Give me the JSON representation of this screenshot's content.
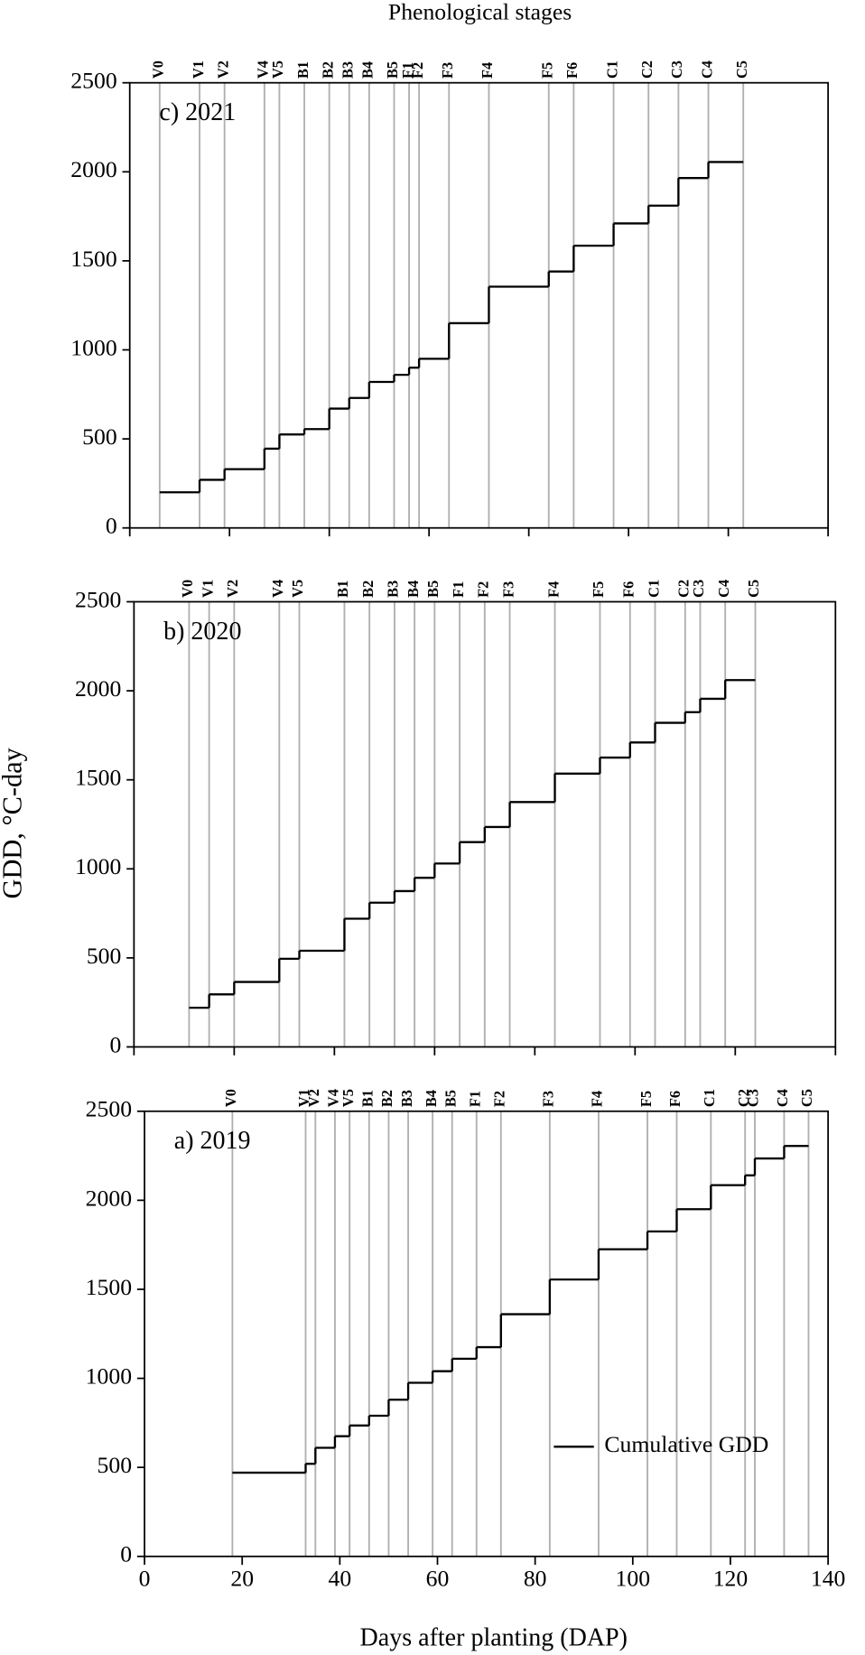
{
  "title": "Phenological stages",
  "xlabel": "Days after planting (DAP)",
  "ylabel": "GDD, °C-day",
  "chart_data": [
    {
      "type": "line",
      "panel_label": "c) 2021",
      "color": "#000000",
      "stage_color": "#b0b0b0",
      "stages": [
        "V0",
        "V1",
        "V2",
        "V4",
        "V5",
        "B1",
        "B2",
        "B3",
        "B4",
        "B5",
        "F1",
        "F2",
        "F3",
        "F4",
        "F5",
        "F6",
        "C1",
        "C2",
        "C3",
        "C4",
        "C5"
      ],
      "x": [
        6,
        14,
        19,
        27,
        30,
        35,
        40,
        44,
        48,
        53,
        56,
        58,
        64,
        72,
        84,
        89,
        97,
        104,
        110,
        116,
        123
      ],
      "values": [
        200,
        270,
        330,
        445,
        525,
        555,
        670,
        730,
        820,
        860,
        900,
        950,
        1150,
        1355,
        1440,
        1585,
        1710,
        1810,
        1965,
        2055,
        2055
      ],
      "xlim": [
        0,
        140
      ],
      "ylim": [
        0,
        2500
      ],
      "xticks": [
        0,
        20,
        40,
        60,
        80,
        100,
        120,
        140
      ],
      "xtick_labels": false,
      "yticks": [
        0,
        500,
        1000,
        1500,
        2000,
        2500
      ]
    },
    {
      "type": "line",
      "panel_label": "b) 2020",
      "color": "#000000",
      "stage_color": "#b0b0b0",
      "stages": [
        "V0",
        "V1",
        "V2",
        "V4",
        "V5",
        "B1",
        "B2",
        "B3",
        "B4",
        "B5",
        "F1",
        "F2",
        "F3",
        "F4",
        "F5",
        "F6",
        "C1",
        "C2",
        "C3",
        "C4",
        "C5"
      ],
      "x": [
        11,
        15,
        20,
        29,
        33,
        42,
        47,
        52,
        56,
        60,
        65,
        70,
        75,
        84,
        93,
        99,
        104,
        110,
        113,
        118,
        124
      ],
      "values": [
        220,
        295,
        365,
        495,
        540,
        720,
        810,
        875,
        950,
        1030,
        1150,
        1235,
        1375,
        1535,
        1625,
        1710,
        1820,
        1880,
        1955,
        2060,
        2060
      ],
      "xlim": [
        0,
        140
      ],
      "ylim": [
        0,
        2500
      ],
      "xticks": [
        0,
        20,
        40,
        60,
        80,
        100,
        120,
        140
      ],
      "xtick_labels": false,
      "yticks": [
        0,
        500,
        1000,
        1500,
        2000,
        2500
      ]
    },
    {
      "type": "line",
      "panel_label": "a) 2019",
      "color": "#000000",
      "stage_color": "#b0b0b0",
      "stages": [
        "V0",
        "V1",
        "V2",
        "V4",
        "V5",
        "B1",
        "B2",
        "B3",
        "B4",
        "B5",
        "F1",
        "F2",
        "F3",
        "F4",
        "F5",
        "F6",
        "C1",
        "C2",
        "C3",
        "C4",
        "C5"
      ],
      "x": [
        18,
        33,
        35,
        39,
        42,
        46,
        50,
        54,
        59,
        63,
        68,
        73,
        83,
        93,
        103,
        109,
        116,
        123,
        125,
        131,
        136
      ],
      "values": [
        470,
        520,
        610,
        675,
        735,
        790,
        880,
        975,
        1040,
        1110,
        1175,
        1360,
        1555,
        1725,
        1825,
        1950,
        2085,
        2140,
        2235,
        2305,
        2305
      ],
      "xlim": [
        0,
        140
      ],
      "ylim": [
        0,
        2500
      ],
      "xticks": [
        0,
        20,
        40,
        60,
        80,
        100,
        120,
        140
      ],
      "xtick_labels": true,
      "yticks": [
        0,
        500,
        1000,
        1500,
        2000,
        2500
      ],
      "legend": {
        "label": "Cumulative GDD",
        "position": "lower right"
      }
    }
  ]
}
